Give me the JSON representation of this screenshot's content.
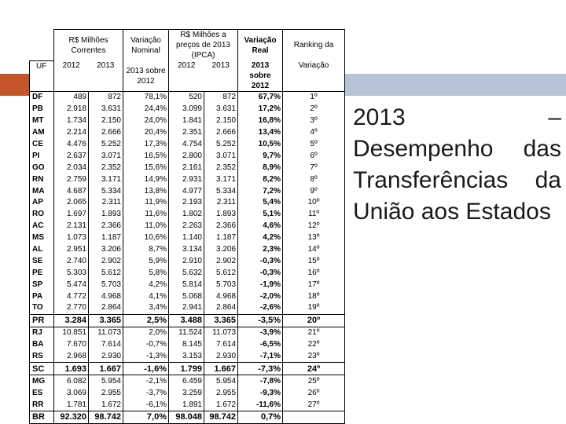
{
  "colors": {
    "accent_bar": "#b7c3d6",
    "accent_block": "#c5562a"
  },
  "title": {
    "line1_left": "2013",
    "line1_right": "–",
    "rest": "Desempenho das Transferências da União aos Estados"
  },
  "table": {
    "headers": {
      "uf": "UF",
      "g1": "R$ Milhões Correntes",
      "g2": "Variação Nominal",
      "g3": "R$ Milhões a preços de 2013 (IPCA)",
      "g4": "Variação Real",
      "g5": "Ranking da",
      "y2012": "2012",
      "y2013": "2013",
      "sobre": "2013 sobre 2012",
      "y2012b": "2012",
      "y2013b": "2013",
      "sobre_b": "2013 sobre 2012",
      "variacao": "Variação"
    },
    "rows": [
      {
        "uf": "DF",
        "c1": "489",
        "c2": "872",
        "c3": "78,1%",
        "c4": "520",
        "c5": "872",
        "c6": "67,7%",
        "c7": "1º",
        "bold": false
      },
      {
        "uf": "PB",
        "c1": "2.918",
        "c2": "3.631",
        "c3": "24,4%",
        "c4": "3.099",
        "c5": "3.631",
        "c6": "17,2%",
        "c7": "2º",
        "bold": false
      },
      {
        "uf": "MT",
        "c1": "1.734",
        "c2": "2.150",
        "c3": "24,0%",
        "c4": "1.841",
        "c5": "2.150",
        "c6": "16,8%",
        "c7": "3º",
        "bold": false
      },
      {
        "uf": "AM",
        "c1": "2.214",
        "c2": "2.666",
        "c3": "20,4%",
        "c4": "2.351",
        "c5": "2.666",
        "c6": "13,4%",
        "c7": "4º",
        "bold": false
      },
      {
        "uf": "CE",
        "c1": "4.476",
        "c2": "5.252",
        "c3": "17,3%",
        "c4": "4.754",
        "c5": "5.252",
        "c6": "10,5%",
        "c7": "5º",
        "bold": false
      },
      {
        "uf": "PI",
        "c1": "2.637",
        "c2": "3.071",
        "c3": "16,5%",
        "c4": "2.800",
        "c5": "3.071",
        "c6": "9,7%",
        "c7": "6º",
        "bold": false
      },
      {
        "uf": "GO",
        "c1": "2.034",
        "c2": "2.352",
        "c3": "15,6%",
        "c4": "2.161",
        "c5": "2.352",
        "c6": "8,9%",
        "c7": "7º",
        "bold": false
      },
      {
        "uf": "RN",
        "c1": "2.759",
        "c2": "3.171",
        "c3": "14,9%",
        "c4": "2.931",
        "c5": "3.171",
        "c6": "8,2%",
        "c7": "8º",
        "bold": false
      },
      {
        "uf": "MA",
        "c1": "4.687",
        "c2": "5.334",
        "c3": "13,8%",
        "c4": "4.977",
        "c5": "5.334",
        "c6": "7,2%",
        "c7": "9º",
        "bold": false
      },
      {
        "uf": "AP",
        "c1": "2.065",
        "c2": "2.311",
        "c3": "11,9%",
        "c4": "2.193",
        "c5": "2.311",
        "c6": "5,4%",
        "c7": "10º",
        "bold": false
      },
      {
        "uf": "RO",
        "c1": "1.697",
        "c2": "1.893",
        "c3": "11,6%",
        "c4": "1.802",
        "c5": "1.893",
        "c6": "5,1%",
        "c7": "11º",
        "bold": false
      },
      {
        "uf": "AC",
        "c1": "2.131",
        "c2": "2.366",
        "c3": "11,0%",
        "c4": "2.263",
        "c5": "2.366",
        "c6": "4,6%",
        "c7": "12º",
        "bold": false
      },
      {
        "uf": "MS",
        "c1": "1.073",
        "c2": "1.187",
        "c3": "10,6%",
        "c4": "1.140",
        "c5": "1.187",
        "c6": "4,2%",
        "c7": "13º",
        "bold": false
      },
      {
        "uf": "AL",
        "c1": "2.951",
        "c2": "3.206",
        "c3": "8,7%",
        "c4": "3.134",
        "c5": "3.206",
        "c6": "2,3%",
        "c7": "14º",
        "bold": false
      },
      {
        "uf": "SE",
        "c1": "2.740",
        "c2": "2.902",
        "c3": "5,9%",
        "c4": "2.910",
        "c5": "2.902",
        "c6": "-0,3%",
        "c7": "15º",
        "bold": false
      },
      {
        "uf": "PE",
        "c1": "5.303",
        "c2": "5.612",
        "c3": "5,8%",
        "c4": "5.632",
        "c5": "5.612",
        "c6": "-0,3%",
        "c7": "16º",
        "bold": false
      },
      {
        "uf": "SP",
        "c1": "5.474",
        "c2": "5.703",
        "c3": "4,2%",
        "c4": "5.814",
        "c5": "5.703",
        "c6": "-1,9%",
        "c7": "17º",
        "bold": false
      },
      {
        "uf": "PA",
        "c1": "4.772",
        "c2": "4.968",
        "c3": "4,1%",
        "c4": "5.068",
        "c5": "4.968",
        "c6": "-2,0%",
        "c7": "18º",
        "bold": false
      },
      {
        "uf": "TO",
        "c1": "2.770",
        "c2": "2.864",
        "c3": "3,4%",
        "c4": "2.941",
        "c5": "2.864",
        "c6": "-2,6%",
        "c7": "19º",
        "bold": false
      },
      {
        "uf": "PR",
        "c1": "3.284",
        "c2": "3.365",
        "c3": "2,5%",
        "c4": "3.488",
        "c5": "3.365",
        "c6": "-3,5%",
        "c7": "20º",
        "bold": true
      },
      {
        "uf": "RJ",
        "c1": "10.851",
        "c2": "11.073",
        "c3": "2,0%",
        "c4": "11.524",
        "c5": "11.073",
        "c6": "-3,9%",
        "c7": "21º",
        "bold": false
      },
      {
        "uf": "BA",
        "c1": "7.670",
        "c2": "7.614",
        "c3": "-0,7%",
        "c4": "8.145",
        "c5": "7.614",
        "c6": "-6,5%",
        "c7": "22º",
        "bold": false
      },
      {
        "uf": "RS",
        "c1": "2.968",
        "c2": "2.930",
        "c3": "-1,3%",
        "c4": "3.153",
        "c5": "2.930",
        "c6": "-7,1%",
        "c7": "23º",
        "bold": false
      },
      {
        "uf": "SC",
        "c1": "1.693",
        "c2": "1.667",
        "c3": "-1,6%",
        "c4": "1.799",
        "c5": "1.667",
        "c6": "-7,3%",
        "c7": "24º",
        "bold": true
      },
      {
        "uf": "MG",
        "c1": "6.082",
        "c2": "5.954",
        "c3": "-2,1%",
        "c4": "6.459",
        "c5": "5.954",
        "c6": "-7,8%",
        "c7": "25º",
        "bold": false
      },
      {
        "uf": "ES",
        "c1": "3.069",
        "c2": "2.955",
        "c3": "-3,7%",
        "c4": "3.259",
        "c5": "2.955",
        "c6": "-9,3%",
        "c7": "26º",
        "bold": false
      },
      {
        "uf": "RR",
        "c1": "1.781",
        "c2": "1.672",
        "c3": "-6,1%",
        "c4": "1.891",
        "c5": "1.672",
        "c6": "-11,6%",
        "c7": "27º",
        "bold": false
      },
      {
        "uf": "BR",
        "c1": "92.320",
        "c2": "98.742",
        "c3": "7,0%",
        "c4": "98.048",
        "c5": "98.742",
        "c6": "0,7%",
        "c7": "",
        "bold": true
      }
    ]
  }
}
